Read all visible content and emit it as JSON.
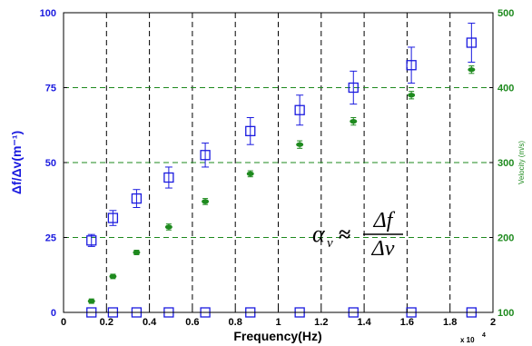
{
  "chart_data": {
    "type": "scatter",
    "xlabel": "Frequency(Hz)",
    "x_scale_label": "x 10",
    "x_scale_exp": "4",
    "ylabel_left": "Δf/Δv(m⁻¹)",
    "ylabel_right": "Velocity (m/s)",
    "xlim": [
      0,
      20000
    ],
    "ylim_left": [
      0,
      100
    ],
    "ylim_right": [
      100,
      500
    ],
    "x_ticks": [
      0,
      2000,
      4000,
      6000,
      8000,
      10000,
      12000,
      14000,
      16000,
      18000,
      20000
    ],
    "x_tick_labels": [
      "0",
      "0.2",
      "0.4",
      "0.6",
      "0.8",
      "1",
      "1.2",
      "1.4",
      "1.6",
      "1.8",
      "2"
    ],
    "y_left_ticks": [
      0,
      25,
      50,
      75,
      100
    ],
    "y_left_tick_labels": [
      "0",
      "25",
      "50",
      "75",
      "100"
    ],
    "y_right_ticks": [
      100,
      200,
      300,
      400,
      500
    ],
    "y_right_tick_labels": [
      "100",
      "200",
      "300",
      "400",
      "500"
    ],
    "vertical_grid_x": [
      2000,
      4000,
      6000,
      8000,
      10000,
      12000,
      14000,
      16000,
      18000
    ],
    "horizontal_grid_right": [
      200,
      300,
      400
    ],
    "colors": {
      "left_axis": "#1a1adf",
      "right_axis": "#1e8a1e",
      "left_series": "#1a1adf",
      "right_series": "#1e8a1e",
      "grid_vertical": "#000000",
      "grid_horizontal": "#1e8a1e"
    },
    "series": [
      {
        "axis": "left",
        "marker": "square",
        "x": [
          1300,
          2300,
          3400,
          4900,
          6600,
          8700,
          11000,
          13500,
          16200,
          19000
        ],
        "y": [
          24,
          31.5,
          38,
          45,
          52.5,
          60.5,
          67.5,
          75,
          82.5,
          90
        ],
        "err": [
          2,
          2.5,
          3,
          3.5,
          4,
          4.5,
          5,
          5.5,
          6,
          6.5
        ]
      },
      {
        "axis": "left",
        "marker": "square",
        "x": [
          1300,
          2300,
          3400,
          4900,
          6600,
          8700,
          11000,
          13500,
          16200,
          19000
        ],
        "y": [
          0,
          0,
          0,
          0,
          0,
          0,
          0,
          0,
          0,
          0
        ]
      },
      {
        "axis": "right",
        "marker": "dot",
        "x": [
          1300,
          2300,
          3400,
          4900,
          6600,
          8700,
          11000,
          13500,
          16200,
          19000
        ],
        "y": [
          115,
          148,
          180,
          214,
          248,
          285,
          324,
          355,
          390,
          424
        ],
        "err": [
          3,
          3,
          3,
          4,
          4,
          4,
          5,
          5,
          5,
          5
        ]
      }
    ],
    "annotation": {
      "lhs": "α",
      "lhs_sub": "v",
      "op": "≈",
      "numerator": "Δf",
      "denominator": "Δv"
    }
  }
}
